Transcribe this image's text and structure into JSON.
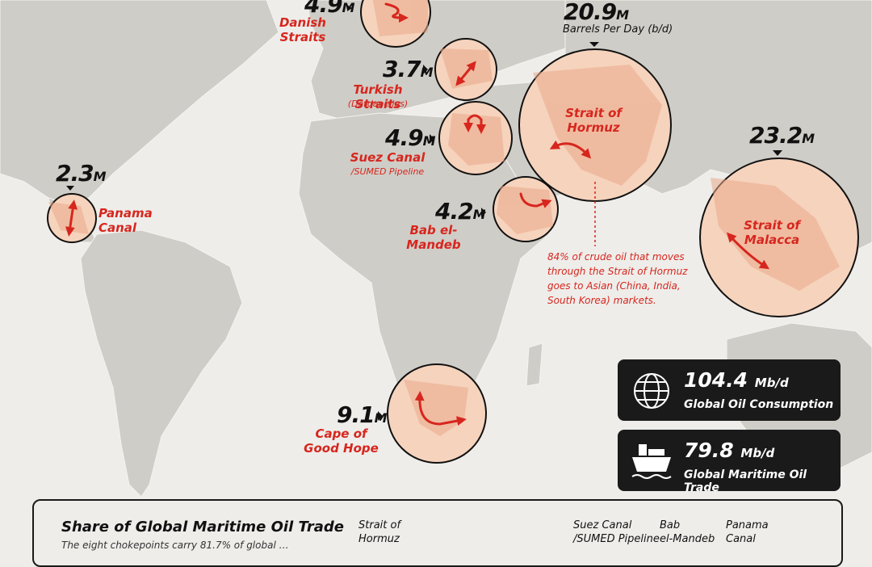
{
  "chokepoints": [
    {
      "id": "danish",
      "value": "4.9",
      "unit": "M",
      "name": "Danish Straits",
      "sub": ""
    },
    {
      "id": "turkish",
      "value": "3.7",
      "unit": "M",
      "name": "Turkish Straits",
      "sub": "(Dardanelles)"
    },
    {
      "id": "suez",
      "value": "4.9",
      "unit": "M",
      "name": "Suez Canal",
      "sub": "/SUMED Pipeline"
    },
    {
      "id": "bab",
      "value": "4.2",
      "unit": "M",
      "name": "Bab el-Mandeb",
      "sub": ""
    },
    {
      "id": "panama",
      "value": "2.3",
      "unit": "M",
      "name1": "Panama",
      "name2": "Canal"
    },
    {
      "id": "cape",
      "value": "9.1",
      "unit": "M",
      "name1": "Cape of",
      "name2": "Good Hope"
    },
    {
      "id": "hormuz",
      "value": "20.9",
      "unit": "M",
      "unit_label": "Barrels Per Day (b/d)",
      "name1": "Strait of",
      "name2": "Hormuz"
    },
    {
      "id": "malacca",
      "value": "23.2",
      "unit": "M",
      "name1": "Strait of",
      "name2": "Malacca"
    }
  ],
  "chart_data": {
    "type": "table",
    "unit": "Barrels Per Day (b/d)",
    "categories": [
      "Danish Straits",
      "Turkish Straits",
      "Suez Canal/SUMED Pipeline",
      "Bab el-Mandeb",
      "Panama Canal",
      "Cape of Good Hope",
      "Strait of Hormuz",
      "Strait of Malacca"
    ],
    "values_millions": [
      4.9,
      3.7,
      4.9,
      4.2,
      2.3,
      9.1,
      20.9,
      23.2
    ]
  },
  "hormuz_note": [
    "84% of crude oil that moves",
    "through the Strait of Hormuz",
    "goes to Asian (China, India,",
    "South Korea) markets."
  ],
  "stats": [
    {
      "value": "104.4",
      "unit": "Mb/d",
      "label": "Global Oil Consumption",
      "icon": "globe-icon"
    },
    {
      "value": "79.8",
      "unit": "Mb/d",
      "label": "Global Maritime Oil Trade",
      "icon": "tanker-ship-icon"
    }
  ],
  "panel": {
    "title": "Share of Global Maritime Oil Trade",
    "desc": "The eight chokepoints carry 81.7% of global …",
    "cols": [
      {
        "l1": "Strait of",
        "l2": "Hormuz"
      },
      {
        "l1": "Suez Canal",
        "l2": "/SUMED Pipeline"
      },
      {
        "l1": "Bab",
        "l2": "el-Mandeb"
      },
      {
        "l1": "Panama",
        "l2": "Canal"
      }
    ]
  },
  "colors": {
    "highlight": "#d7261e",
    "land": "#cfcdc7",
    "circle_fill": "#f6d3bd",
    "box": "#1a1a1a"
  }
}
